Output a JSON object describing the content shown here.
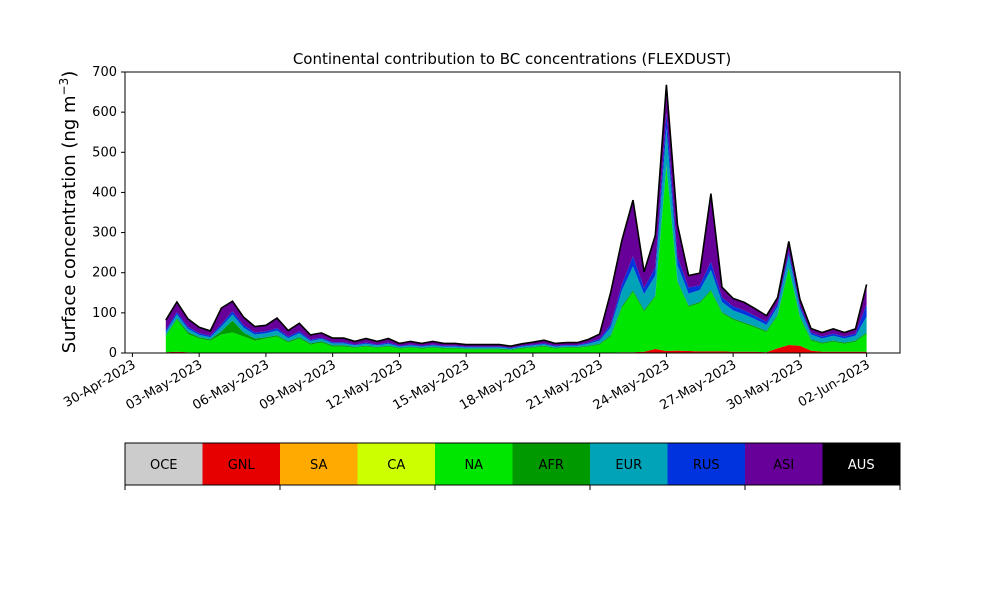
{
  "chart_data": {
    "type": "area",
    "stacked": true,
    "title": "Continental contribution to BC concentrations (FLEXDUST)",
    "ylabel_text": "Surface concentration (ng m",
    "ylabel_exponent": "−3",
    "ylabel_close": ")",
    "xlabel": "",
    "ylim": [
      0,
      700
    ],
    "xlim": [
      "2023-04-29T16:00",
      "2023-06-03T12:00"
    ],
    "yticks": [
      0,
      100,
      200,
      300,
      400,
      500,
      600,
      700
    ],
    "xticks": [
      {
        "date": "2023-04-30",
        "label": "30-Apr-2023"
      },
      {
        "date": "2023-05-03",
        "label": "03-May-2023"
      },
      {
        "date": "2023-05-06",
        "label": "06-May-2023"
      },
      {
        "date": "2023-05-09",
        "label": "09-May-2023"
      },
      {
        "date": "2023-05-12",
        "label": "12-May-2023"
      },
      {
        "date": "2023-05-15",
        "label": "15-May-2023"
      },
      {
        "date": "2023-05-18",
        "label": "18-May-2023"
      },
      {
        "date": "2023-05-21",
        "label": "21-May-2023"
      },
      {
        "date": "2023-05-24",
        "label": "24-May-2023"
      },
      {
        "date": "2023-05-27",
        "label": "27-May-2023"
      },
      {
        "date": "2023-05-30",
        "label": "30-May-2023"
      },
      {
        "date": "2023-06-02",
        "label": "02-Jun-2023"
      }
    ],
    "total_line_color": "#000000",
    "legend_placement": "bottom",
    "legend": [
      {
        "name": "OCE",
        "color": "#cccccc",
        "text_color": "#000000"
      },
      {
        "name": "GNL",
        "color": "#e60000",
        "text_color": "#000000"
      },
      {
        "name": "SA",
        "color": "#ffaa00",
        "text_color": "#000000"
      },
      {
        "name": "CA",
        "color": "#ccff00",
        "text_color": "#000000"
      },
      {
        "name": "NA",
        "color": "#00e600",
        "text_color": "#000000"
      },
      {
        "name": "AFR",
        "color": "#009900",
        "text_color": "#000000"
      },
      {
        "name": "EUR",
        "color": "#00a3b8",
        "text_color": "#000000"
      },
      {
        "name": "RUS",
        "color": "#0033dd",
        "text_color": "#000000"
      },
      {
        "name": "ASI",
        "color": "#660099",
        "text_color": "#000000"
      },
      {
        "name": "AUS",
        "color": "#000000",
        "text_color": "#ffffff"
      }
    ],
    "series_order": [
      "GNL",
      "NA",
      "AFR",
      "EUR",
      "RUS",
      "ASI"
    ],
    "x": [
      "2023-05-01T12:00",
      "2023-05-02T00:00",
      "2023-05-02T12:00",
      "2023-05-03T00:00",
      "2023-05-03T12:00",
      "2023-05-04T00:00",
      "2023-05-04T12:00",
      "2023-05-05T00:00",
      "2023-05-05T12:00",
      "2023-05-06T00:00",
      "2023-05-06T12:00",
      "2023-05-07T00:00",
      "2023-05-07T12:00",
      "2023-05-08T00:00",
      "2023-05-08T12:00",
      "2023-05-09T00:00",
      "2023-05-09T12:00",
      "2023-05-10T00:00",
      "2023-05-10T12:00",
      "2023-05-11T00:00",
      "2023-05-11T12:00",
      "2023-05-12T00:00",
      "2023-05-12T12:00",
      "2023-05-13T00:00",
      "2023-05-13T12:00",
      "2023-05-14T00:00",
      "2023-05-14T12:00",
      "2023-05-15T00:00",
      "2023-05-15T12:00",
      "2023-05-16T00:00",
      "2023-05-16T12:00",
      "2023-05-17T00:00",
      "2023-05-17T12:00",
      "2023-05-18T00:00",
      "2023-05-18T12:00",
      "2023-05-19T00:00",
      "2023-05-19T12:00",
      "2023-05-20T00:00",
      "2023-05-20T12:00",
      "2023-05-21T00:00",
      "2023-05-21T12:00",
      "2023-05-22T00:00",
      "2023-05-22T12:00",
      "2023-05-23T00:00",
      "2023-05-23T12:00",
      "2023-05-24T00:00",
      "2023-05-24T12:00",
      "2023-05-25T00:00",
      "2023-05-25T12:00",
      "2023-05-26T00:00",
      "2023-05-26T12:00",
      "2023-05-27T00:00",
      "2023-05-27T12:00",
      "2023-05-28T00:00",
      "2023-05-28T12:00",
      "2023-05-29T00:00",
      "2023-05-29T12:00",
      "2023-05-30T00:00",
      "2023-05-30T12:00",
      "2023-05-31T00:00",
      "2023-05-31T12:00",
      "2023-06-01T00:00",
      "2023-06-01T12:00",
      "2023-06-02T00:00"
    ],
    "series": [
      {
        "name": "GNL",
        "values": [
          2,
          3,
          2,
          1,
          1,
          1,
          1,
          1,
          1,
          1,
          1,
          1,
          1,
          1,
          1,
          1,
          1,
          1,
          1,
          1,
          1,
          1,
          1,
          1,
          1,
          1,
          1,
          1,
          1,
          1,
          1,
          1,
          1,
          1,
          1,
          1,
          1,
          1,
          1,
          1,
          1,
          2,
          2,
          3,
          10,
          5,
          6,
          5,
          4,
          4,
          4,
          3,
          3,
          3,
          2,
          12,
          20,
          18,
          6,
          3,
          3,
          3,
          3,
          3
        ]
      },
      {
        "name": "NA",
        "values": [
          40,
          80,
          45,
          35,
          30,
          45,
          50,
          40,
          30,
          35,
          40,
          25,
          35,
          20,
          25,
          15,
          15,
          12,
          15,
          12,
          15,
          10,
          12,
          10,
          12,
          10,
          10,
          8,
          8,
          8,
          8,
          6,
          10,
          12,
          15,
          10,
          12,
          12,
          15,
          20,
          40,
          110,
          150,
          100,
          130,
          460,
          170,
          110,
          120,
          150,
          95,
          80,
          70,
          60,
          50,
          80,
          190,
          70,
          25,
          20,
          25,
          20,
          25,
          45
        ]
      },
      {
        "name": "AFR",
        "values": [
          2,
          3,
          5,
          3,
          3,
          8,
          30,
          10,
          5,
          3,
          3,
          3,
          3,
          3,
          3,
          3,
          3,
          2,
          2,
          2,
          2,
          2,
          2,
          2,
          2,
          2,
          2,
          2,
          2,
          2,
          2,
          2,
          2,
          2,
          2,
          2,
          2,
          2,
          2,
          2,
          3,
          4,
          4,
          4,
          3,
          3,
          3,
          3,
          3,
          3,
          3,
          3,
          3,
          3,
          3,
          3,
          3,
          3,
          3,
          3,
          3,
          3,
          3,
          3
        ]
      },
      {
        "name": "EUR",
        "values": [
          8,
          10,
          8,
          6,
          5,
          12,
          15,
          12,
          10,
          10,
          12,
          8,
          10,
          6,
          6,
          5,
          5,
          4,
          5,
          4,
          5,
          3,
          4,
          3,
          4,
          3,
          3,
          3,
          3,
          3,
          3,
          2,
          3,
          4,
          4,
          3,
          3,
          3,
          5,
          8,
          20,
          40,
          60,
          40,
          50,
          90,
          40,
          30,
          30,
          50,
          25,
          20,
          20,
          18,
          15,
          20,
          30,
          20,
          12,
          10,
          12,
          10,
          12,
          40
        ]
      },
      {
        "name": "RUS",
        "values": [
          5,
          6,
          5,
          4,
          4,
          6,
          8,
          6,
          5,
          5,
          6,
          4,
          5,
          3,
          3,
          3,
          3,
          2,
          3,
          2,
          3,
          2,
          2,
          2,
          2,
          2,
          2,
          2,
          2,
          2,
          2,
          2,
          2,
          2,
          2,
          2,
          2,
          2,
          3,
          4,
          8,
          15,
          25,
          15,
          20,
          40,
          20,
          15,
          12,
          20,
          12,
          10,
          10,
          8,
          8,
          8,
          10,
          8,
          5,
          5,
          5,
          5,
          5,
          30
        ]
      },
      {
        "name": "ASI",
        "values": [
          25,
          25,
          20,
          15,
          12,
          40,
          25,
          20,
          15,
          15,
          25,
          15,
          20,
          12,
          12,
          10,
          10,
          8,
          10,
          8,
          10,
          6,
          8,
          6,
          8,
          6,
          6,
          5,
          5,
          5,
          5,
          4,
          5,
          6,
          8,
          6,
          6,
          6,
          8,
          12,
          80,
          110,
          140,
          40,
          80,
          70,
          80,
          30,
          30,
          170,
          25,
          20,
          20,
          18,
          15,
          15,
          25,
          15,
          10,
          10,
          12,
          10,
          12,
          50
        ]
      }
    ]
  }
}
